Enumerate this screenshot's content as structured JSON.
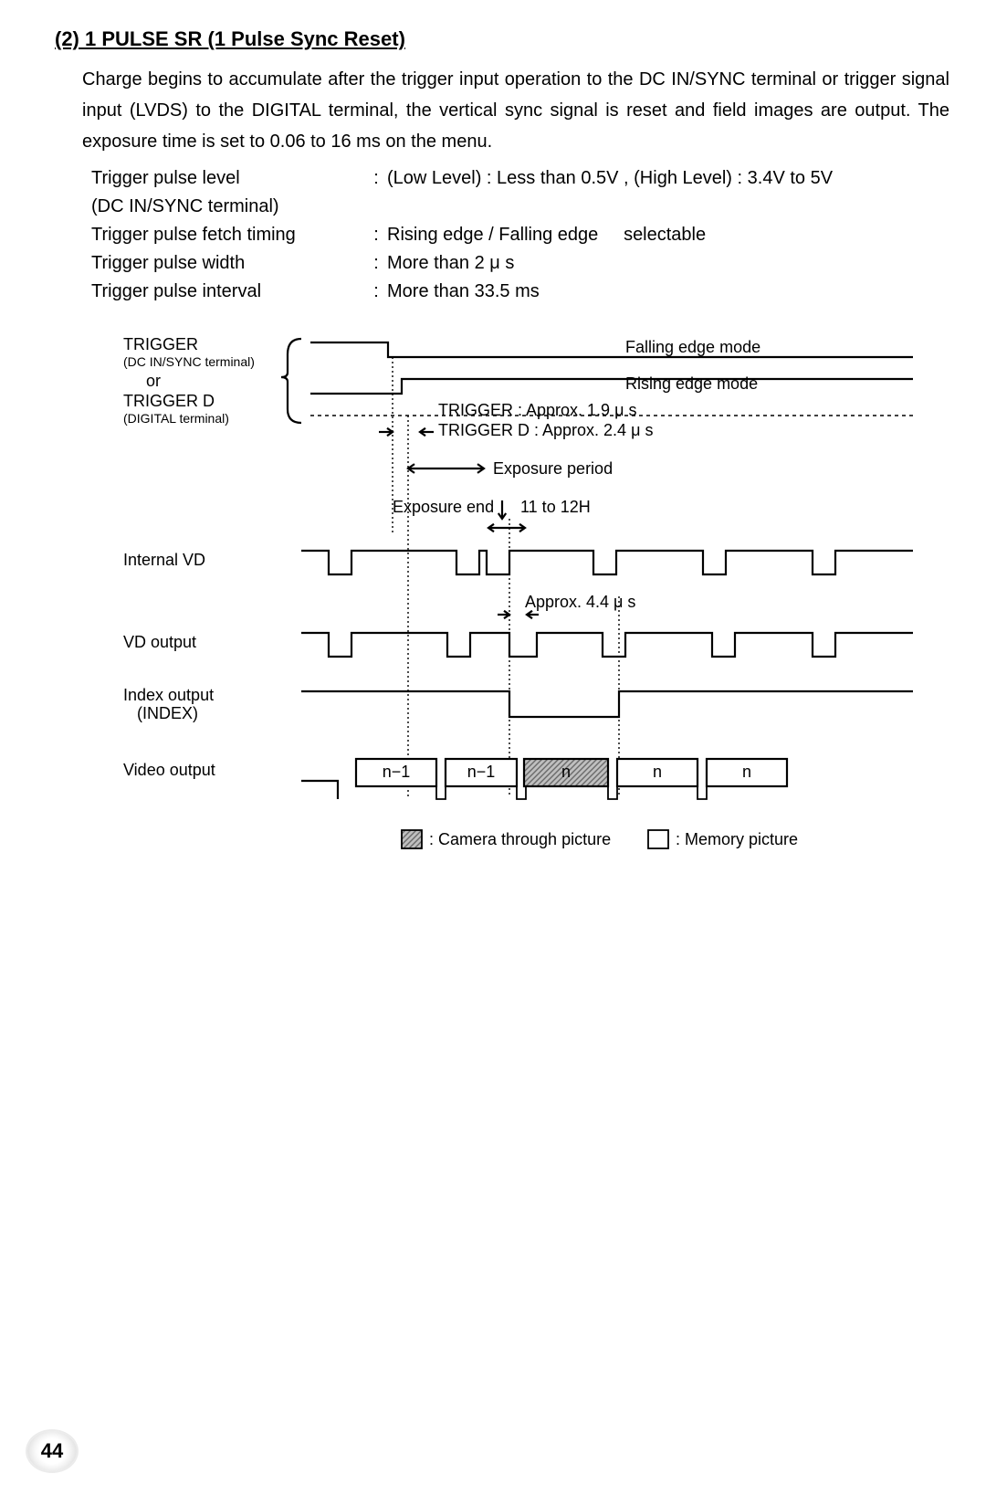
{
  "heading": "(2)  1 PULSE SR (1 Pulse Sync Reset)",
  "paragraph": "Charge begins to accumulate after the trigger input operation to the DC IN/SYNC terminal or trigger signal input (LVDS) to the DIGITAL terminal, the vertical sync signal is reset and field images are output.  The exposure time is set to 0.06 to 16 ms on the menu.",
  "specs": {
    "row1_label": "Trigger pulse level",
    "row1_value": "(Low Level) : Less than 0.5V ,  (High Level) : 3.4V to 5V",
    "row2_label": "(DC IN/SYNC terminal)",
    "row3_label": "Trigger pulse fetch timing",
    "row3_value": "Rising edge / Falling edge",
    "row3_extra": "selectable",
    "row4_label": "Trigger pulse width",
    "row4_value": "More than 2 μ s",
    "row5_label": "Trigger pulse interval",
    "row5_value": "More than 33.5 ms"
  },
  "diagram": {
    "labels": {
      "trigger": "TRIGGER",
      "trigger_sub": "(DC IN/SYNC terminal)",
      "or": "or",
      "trigger_d": "TRIGGER D",
      "trigger_d_sub": "(DIGITAL terminal)",
      "internal_vd": "Internal VD",
      "vd_output": "VD output",
      "index_output": "Index output",
      "index_sub": "(INDEX)",
      "video_output": "Video output"
    },
    "annotations": {
      "falling_edge": "Falling edge mode",
      "rising_edge": "Rising edge mode",
      "trigger_delay": "TRIGGER : Approx. 1.9 μ s",
      "trigger_d_delay": "TRIGGER D : Approx. 2.4 μ s",
      "exposure_period": "Exposure period",
      "exposure_end": "Exposure end",
      "exposure_end_val": "11 to 12H",
      "approx_44": "Approx. 4.4 μ s"
    },
    "video_frames": [
      "n−1",
      "n−1",
      "n",
      "n",
      "n"
    ],
    "legend": {
      "through": ": Camera through picture",
      "memory": ": Memory picture"
    },
    "colors": {
      "stroke": "#000000",
      "hatch": "#6a6a6a",
      "bg": "#ffffff",
      "dotted": "#000000"
    },
    "style": {
      "stroke_width": 2.2,
      "font_main": 18,
      "font_small": 14,
      "font_label": 18
    }
  },
  "page_number": "44"
}
